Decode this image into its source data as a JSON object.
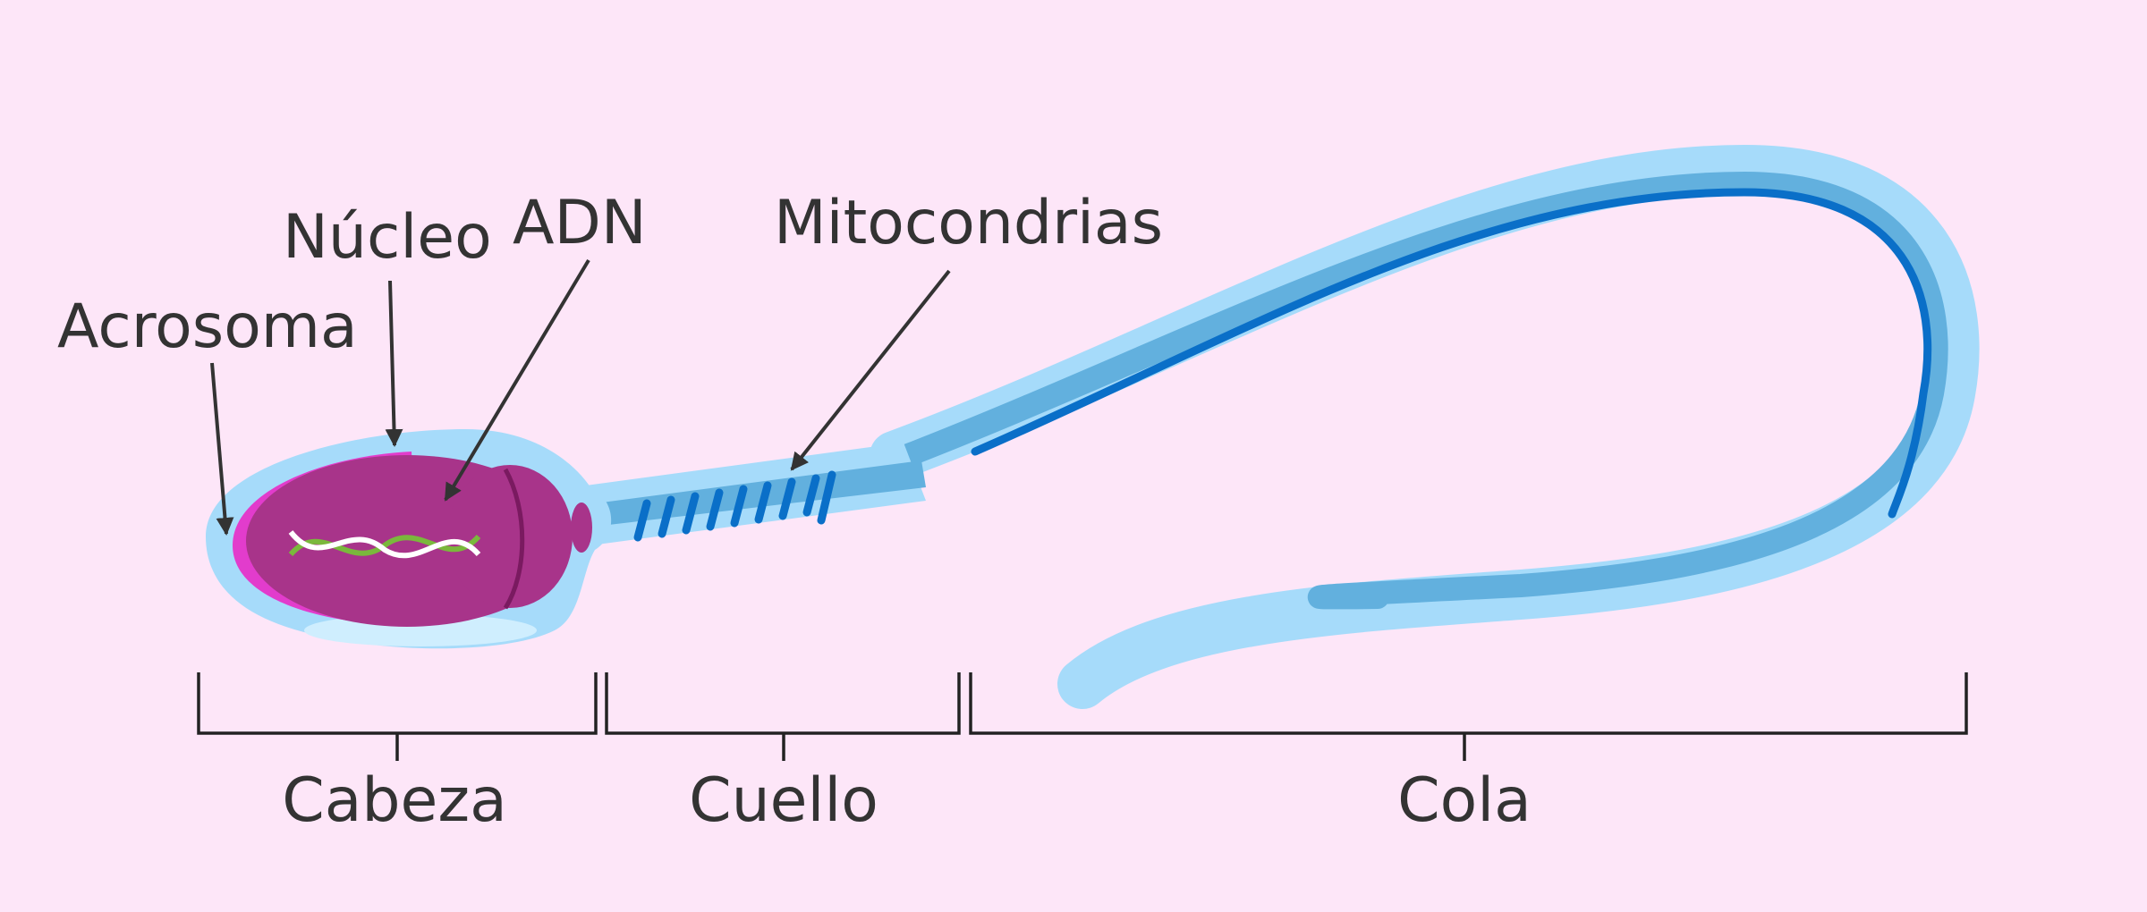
{
  "labels": {
    "acrosoma": "Acrosoma",
    "nucleo": "Núcleo",
    "adn": "ADN",
    "mitocondrias": "Mitocondrias"
  },
  "sections": {
    "cabeza": "Cabeza",
    "cuello": "Cuello",
    "cola": "Cola"
  },
  "colors": {
    "background": "#fde6f8",
    "membrane": "#a6dbfa",
    "tail_mid": "#62b0de",
    "tail_dark": "#0a6fc8",
    "nucleus": "#a8348a",
    "acrosome": "#e23ccc",
    "dna_green": "#7ab83c",
    "text": "#333333"
  }
}
